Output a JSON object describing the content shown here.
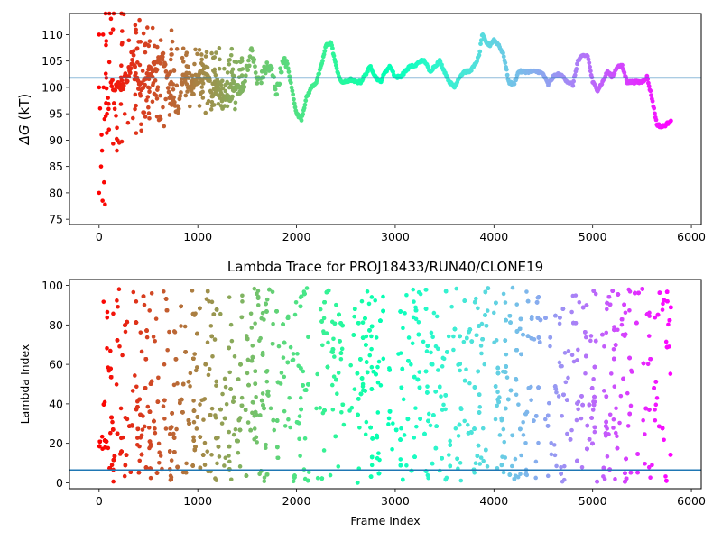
{
  "chart_data": [
    {
      "type": "scatter",
      "title": "",
      "xlabel": "",
      "ylabel": "ΔG (kT)",
      "ylabel_symbol": "ΔG",
      "ylabel_unit": "(kT)",
      "xlim": [
        -300,
        6100
      ],
      "ylim": [
        74,
        114
      ],
      "xticks": [
        "0",
        "1000",
        "2000",
        "3000",
        "4000",
        "5000",
        "6000"
      ],
      "xtick_values": [
        0,
        1000,
        2000,
        3000,
        4000,
        5000,
        6000
      ],
      "yticks": [
        "75",
        "80",
        "85",
        "90",
        "95",
        "100",
        "105",
        "110"
      ],
      "ytick_values": [
        75,
        80,
        85,
        90,
        95,
        100,
        105,
        110
      ],
      "hline": 101.8,
      "hline_color": "#1f77b4",
      "colormap": "rainbow (red at frame 0 → violet at last frame)",
      "n_frames": 5800,
      "early_scatter": [
        [
          0,
          80
        ],
        [
          0,
          100
        ],
        [
          0,
          110
        ],
        [
          10,
          96
        ],
        [
          20,
          85
        ],
        [
          25,
          91
        ],
        [
          30,
          88
        ],
        [
          35,
          78.5
        ],
        [
          40,
          110
        ],
        [
          45,
          100
        ],
        [
          50,
          82
        ],
        [
          55,
          94
        ],
        [
          60,
          77.8
        ],
        [
          70,
          108
        ],
        [
          80,
          95
        ],
        [
          90,
          98
        ],
        [
          100,
          92
        ],
        [
          120,
          113
        ],
        [
          150,
          97
        ],
        [
          180,
          88
        ]
      ],
      "trace": [
        [
          120,
          101
        ],
        [
          200,
          100
        ],
        [
          280,
          102
        ],
        [
          350,
          105
        ],
        [
          420,
          99
        ],
        [
          500,
          103
        ],
        [
          580,
          104
        ],
        [
          650,
          106
        ],
        [
          720,
          98
        ],
        [
          800,
          96
        ],
        [
          850,
          102
        ],
        [
          900,
          103
        ],
        [
          950,
          99
        ],
        [
          1000,
          101
        ],
        [
          1050,
          104
        ],
        [
          1100,
          102
        ],
        [
          1150,
          98
        ],
        [
          1200,
          100
        ],
        [
          1250,
          97
        ],
        [
          1300,
          98
        ],
        [
          1350,
          99
        ],
        [
          1400,
          100
        ],
        [
          1450,
          99
        ],
        [
          1500,
          104
        ],
        [
          1550,
          107
        ],
        [
          1600,
          101
        ],
        [
          1650,
          102
        ],
        [
          1700,
          104
        ],
        [
          1750,
          103
        ],
        [
          1800,
          99
        ],
        [
          1850,
          104
        ],
        [
          1900,
          105
        ],
        [
          1950,
          100
        ],
        [
          2000,
          95
        ],
        [
          2050,
          94
        ],
        [
          2100,
          98
        ],
        [
          2150,
          100
        ],
        [
          2200,
          101
        ],
        [
          2250,
          104
        ],
        [
          2300,
          108
        ],
        [
          2350,
          108.5
        ],
        [
          2400,
          104
        ],
        [
          2450,
          101
        ],
        [
          2500,
          101
        ],
        [
          2550,
          101.5
        ],
        [
          2600,
          101
        ],
        [
          2650,
          101
        ],
        [
          2700,
          102.5
        ],
        [
          2750,
          104
        ],
        [
          2800,
          102
        ],
        [
          2850,
          101
        ],
        [
          2900,
          103
        ],
        [
          2950,
          104
        ],
        [
          3000,
          102
        ],
        [
          3050,
          102
        ],
        [
          3100,
          103
        ],
        [
          3150,
          104
        ],
        [
          3200,
          104
        ],
        [
          3250,
          105
        ],
        [
          3300,
          105
        ],
        [
          3350,
          103
        ],
        [
          3400,
          104
        ],
        [
          3450,
          105
        ],
        [
          3500,
          103
        ],
        [
          3550,
          101
        ],
        [
          3600,
          100
        ],
        [
          3650,
          102
        ],
        [
          3700,
          103
        ],
        [
          3750,
          103
        ],
        [
          3800,
          104
        ],
        [
          3850,
          106
        ],
        [
          3880,
          110
        ],
        [
          3920,
          108.5
        ],
        [
          3960,
          108
        ],
        [
          4000,
          109
        ],
        [
          4050,
          108
        ],
        [
          4100,
          106
        ],
        [
          4150,
          101
        ],
        [
          4200,
          100.5
        ],
        [
          4250,
          103
        ],
        [
          4300,
          103
        ],
        [
          4350,
          103
        ],
        [
          4400,
          103
        ],
        [
          4450,
          103
        ],
        [
          4500,
          102.5
        ],
        [
          4550,
          100.5
        ],
        [
          4600,
          102
        ],
        [
          4650,
          102.5
        ],
        [
          4700,
          102
        ],
        [
          4750,
          101
        ],
        [
          4800,
          100.5
        ],
        [
          4850,
          105
        ],
        [
          4900,
          106
        ],
        [
          4950,
          106
        ],
        [
          5000,
          101
        ],
        [
          5050,
          99.5
        ],
        [
          5100,
          101
        ],
        [
          5150,
          103
        ],
        [
          5200,
          102
        ],
        [
          5250,
          104
        ],
        [
          5300,
          104
        ],
        [
          5350,
          101
        ],
        [
          5400,
          101
        ],
        [
          5450,
          101
        ],
        [
          5500,
          101
        ],
        [
          5550,
          102
        ],
        [
          5600,
          98
        ],
        [
          5650,
          93
        ],
        [
          5700,
          92.5
        ],
        [
          5750,
          93
        ],
        [
          5800,
          94
        ]
      ]
    },
    {
      "type": "scatter",
      "title": "Lambda Trace for PROJ18433/RUN40/CLONE19",
      "xlabel": "Frame Index",
      "ylabel": "Lambda Index",
      "xlim": [
        -300,
        6100
      ],
      "ylim": [
        -3,
        103
      ],
      "xticks": [
        "0",
        "1000",
        "2000",
        "3000",
        "4000",
        "5000",
        "6000"
      ],
      "xtick_values": [
        0,
        1000,
        2000,
        3000,
        4000,
        5000,
        6000
      ],
      "yticks": [
        "0",
        "20",
        "40",
        "60",
        "80",
        "100"
      ],
      "ytick_values": [
        0,
        20,
        40,
        60,
        80,
        100
      ],
      "hline": 6.5,
      "hline_color": "#1f77b4",
      "colormap": "rainbow (red at frame 0 → violet at last frame)",
      "n_frames": 5800,
      "lambda_range": [
        0,
        99
      ],
      "gaps": [
        [
          2150,
          2200
        ],
        [
          2480,
          2530
        ],
        [
          2880,
          2930
        ],
        [
          3950,
          3990
        ],
        [
          4480,
          4520
        ],
        [
          5050,
          5090
        ],
        [
          5470,
          5500
        ],
        [
          5680,
          5700
        ]
      ]
    }
  ]
}
